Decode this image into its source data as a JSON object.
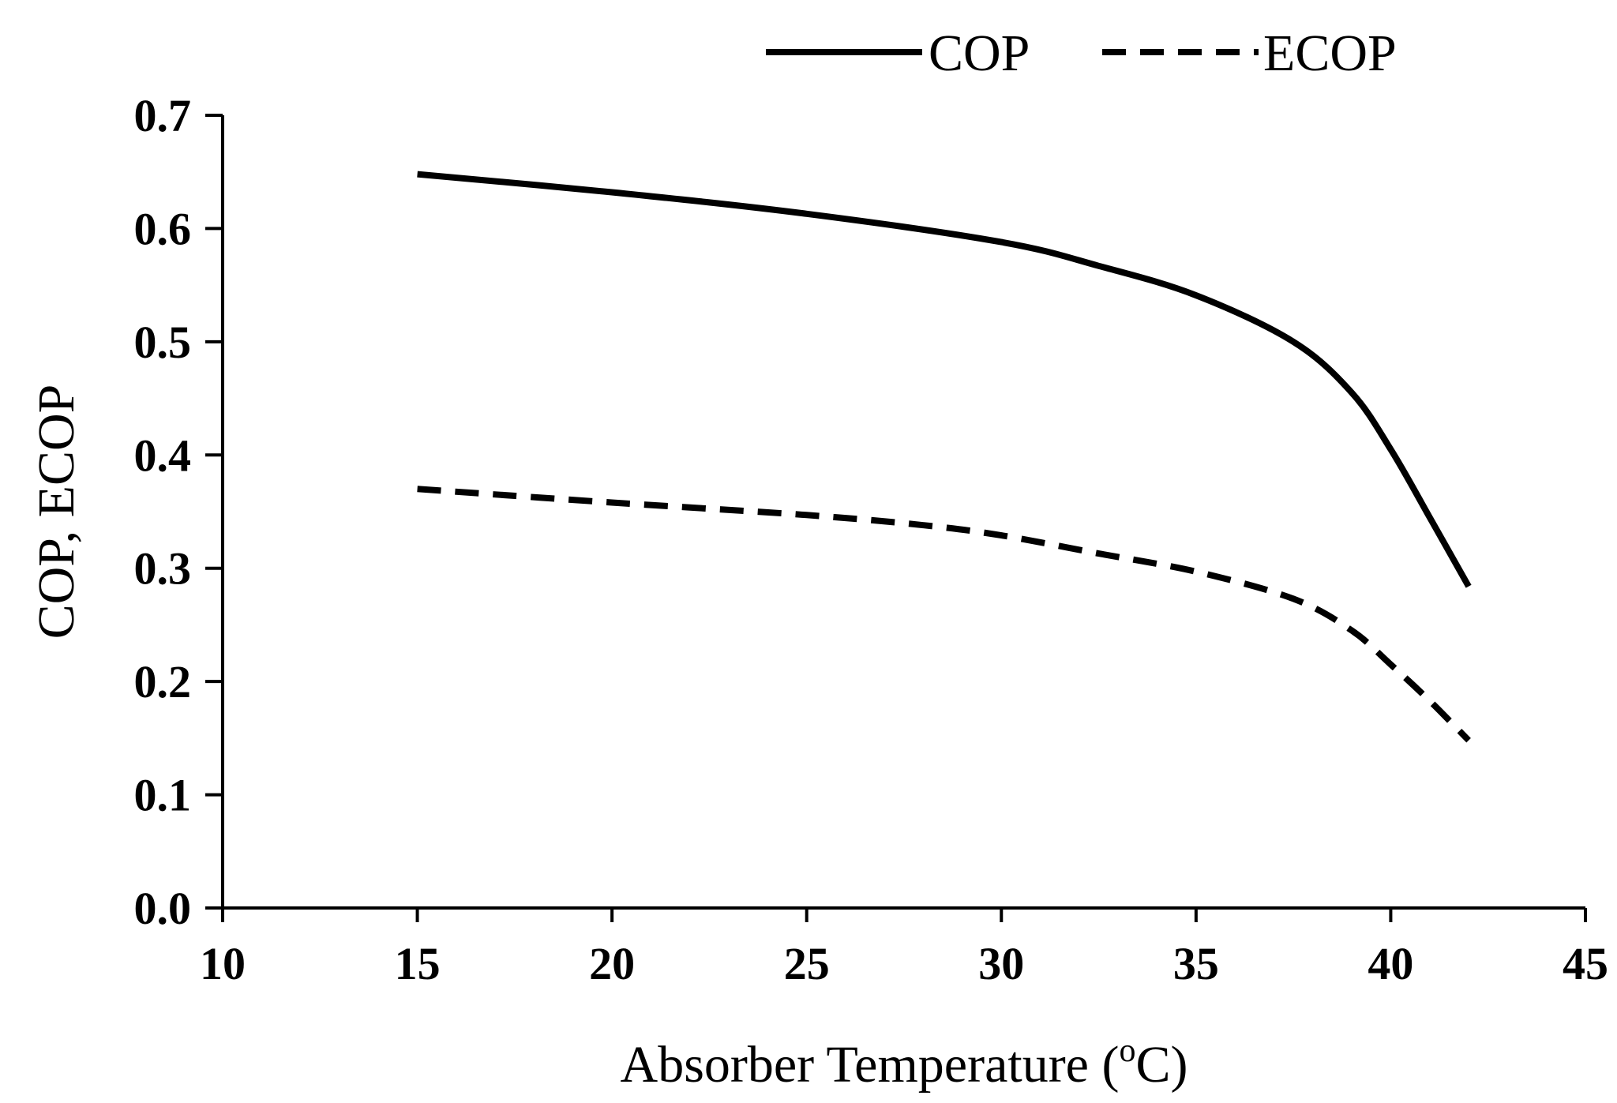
{
  "chart_data": {
    "type": "line",
    "title": "",
    "xlabel": "Absorber Temperature (°C)",
    "xlabel_main": "Absorber Temperature (",
    "xlabel_sup": "o",
    "xlabel_end": "C)",
    "ylabel": "COP, ECOP",
    "xlim": [
      10,
      45
    ],
    "ylim": [
      0.0,
      0.7
    ],
    "xticks": [
      10,
      15,
      20,
      25,
      30,
      35,
      40,
      45
    ],
    "xtick_labels": [
      "10",
      "15",
      "20",
      "25",
      "30",
      "35",
      "40",
      "45"
    ],
    "yticks": [
      0.0,
      0.1,
      0.2,
      0.3,
      0.4,
      0.5,
      0.6,
      0.7
    ],
    "ytick_labels": [
      "0.0",
      "0.1",
      "0.2",
      "0.3",
      "0.4",
      "0.5",
      "0.6",
      "0.7"
    ],
    "grid": false,
    "legend_position": "top-center",
    "series": [
      {
        "name": "COP",
        "style": "solid",
        "color": "#000000",
        "x": [
          15,
          20,
          25,
          30,
          32.5,
          35,
          37.5,
          39,
          40,
          41,
          42
        ],
        "values": [
          0.648,
          0.632,
          0.613,
          0.588,
          0.567,
          0.541,
          0.5,
          0.455,
          0.405,
          0.345,
          0.284
        ]
      },
      {
        "name": "ECOP",
        "style": "dashed",
        "color": "#000000",
        "x": [
          15,
          20,
          25,
          28,
          30,
          32.5,
          35,
          37.5,
          39,
          40,
          41,
          42
        ],
        "values": [
          0.37,
          0.358,
          0.347,
          0.338,
          0.329,
          0.313,
          0.297,
          0.273,
          0.245,
          0.215,
          0.183,
          0.148
        ]
      }
    ]
  }
}
